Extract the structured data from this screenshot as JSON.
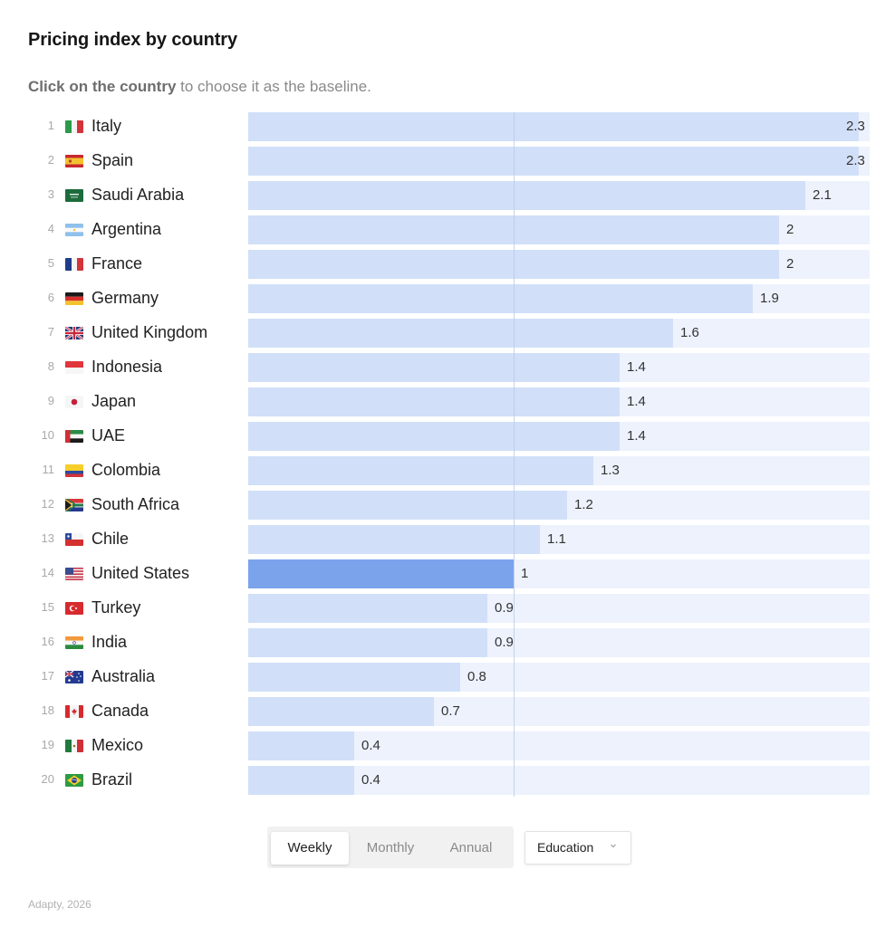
{
  "header": {
    "title": "Pricing index by country",
    "subtitle_bold": "Click on the country",
    "subtitle_rest": " to choose it as the baseline."
  },
  "colors": {
    "bar": "#d1e0f8",
    "bar_selected": "#7aa3ec",
    "track": "#edf2fd",
    "baseline_line": "#b9c9e6"
  },
  "selected_country": "United States",
  "chart_data": {
    "type": "bar",
    "orientation": "horizontal",
    "title": "Pricing index by country",
    "subtitle": "Click on the country to choose it as the baseline.",
    "baseline": 1,
    "baseline_country": "United States",
    "xlim": [
      0,
      2.34
    ],
    "grid": false,
    "categories": [
      "Italy",
      "Spain",
      "Saudi Arabia",
      "Argentina",
      "France",
      "Germany",
      "United Kingdom",
      "Indonesia",
      "Japan",
      "UAE",
      "Colombia",
      "South Africa",
      "Chile",
      "United States",
      "Turkey",
      "India",
      "Australia",
      "Canada",
      "Mexico",
      "Brazil"
    ],
    "values": [
      2.3,
      2.3,
      2.1,
      2,
      2,
      1.9,
      1.6,
      1.4,
      1.4,
      1.4,
      1.3,
      1.2,
      1.1,
      1,
      0.9,
      0.9,
      0.8,
      0.7,
      0.4,
      0.4
    ],
    "ranks": [
      1,
      2,
      3,
      4,
      5,
      6,
      7,
      8,
      9,
      10,
      11,
      12,
      13,
      14,
      15,
      16,
      17,
      18,
      19,
      20
    ]
  },
  "rows": [
    {
      "rank": "1",
      "name": "Italy",
      "value": "2.3",
      "flag": "it-flag"
    },
    {
      "rank": "2",
      "name": "Spain",
      "value": "2.3",
      "flag": "es-flag"
    },
    {
      "rank": "3",
      "name": "Saudi Arabia",
      "value": "2.1",
      "flag": "sa-flag"
    },
    {
      "rank": "4",
      "name": "Argentina",
      "value": "2",
      "flag": "ar-flag"
    },
    {
      "rank": "5",
      "name": "France",
      "value": "2",
      "flag": "fr-flag"
    },
    {
      "rank": "6",
      "name": "Germany",
      "value": "1.9",
      "flag": "de-flag"
    },
    {
      "rank": "7",
      "name": "United Kingdom",
      "value": "1.6",
      "flag": "gb-flag"
    },
    {
      "rank": "8",
      "name": "Indonesia",
      "value": "1.4",
      "flag": "id-flag"
    },
    {
      "rank": "9",
      "name": "Japan",
      "value": "1.4",
      "flag": "jp-flag"
    },
    {
      "rank": "10",
      "name": "UAE",
      "value": "1.4",
      "flag": "ae-flag"
    },
    {
      "rank": "11",
      "name": "Colombia",
      "value": "1.3",
      "flag": "co-flag"
    },
    {
      "rank": "12",
      "name": "South Africa",
      "value": "1.2",
      "flag": "za-flag"
    },
    {
      "rank": "13",
      "name": "Chile",
      "value": "1.1",
      "flag": "cl-flag"
    },
    {
      "rank": "14",
      "name": "United States",
      "value": "1",
      "flag": "us-flag"
    },
    {
      "rank": "15",
      "name": "Turkey",
      "value": "0.9",
      "flag": "tr-flag"
    },
    {
      "rank": "16",
      "name": "India",
      "value": "0.9",
      "flag": "in-flag"
    },
    {
      "rank": "17",
      "name": "Australia",
      "value": "0.8",
      "flag": "au-flag"
    },
    {
      "rank": "18",
      "name": "Canada",
      "value": "0.7",
      "flag": "ca-flag"
    },
    {
      "rank": "19",
      "name": "Mexico",
      "value": "0.4",
      "flag": "mx-flag"
    },
    {
      "rank": "20",
      "name": "Brazil",
      "value": "0.4",
      "flag": "br-flag"
    }
  ],
  "controls": {
    "period_tabs": [
      {
        "label": "Weekly",
        "active": true
      },
      {
        "label": "Monthly",
        "active": false
      },
      {
        "label": "Annual",
        "active": false
      }
    ],
    "category_dropdown": {
      "selected": "Education",
      "icon": "chevron-down-icon"
    }
  },
  "footer": {
    "source": "Adapty, 2026"
  }
}
